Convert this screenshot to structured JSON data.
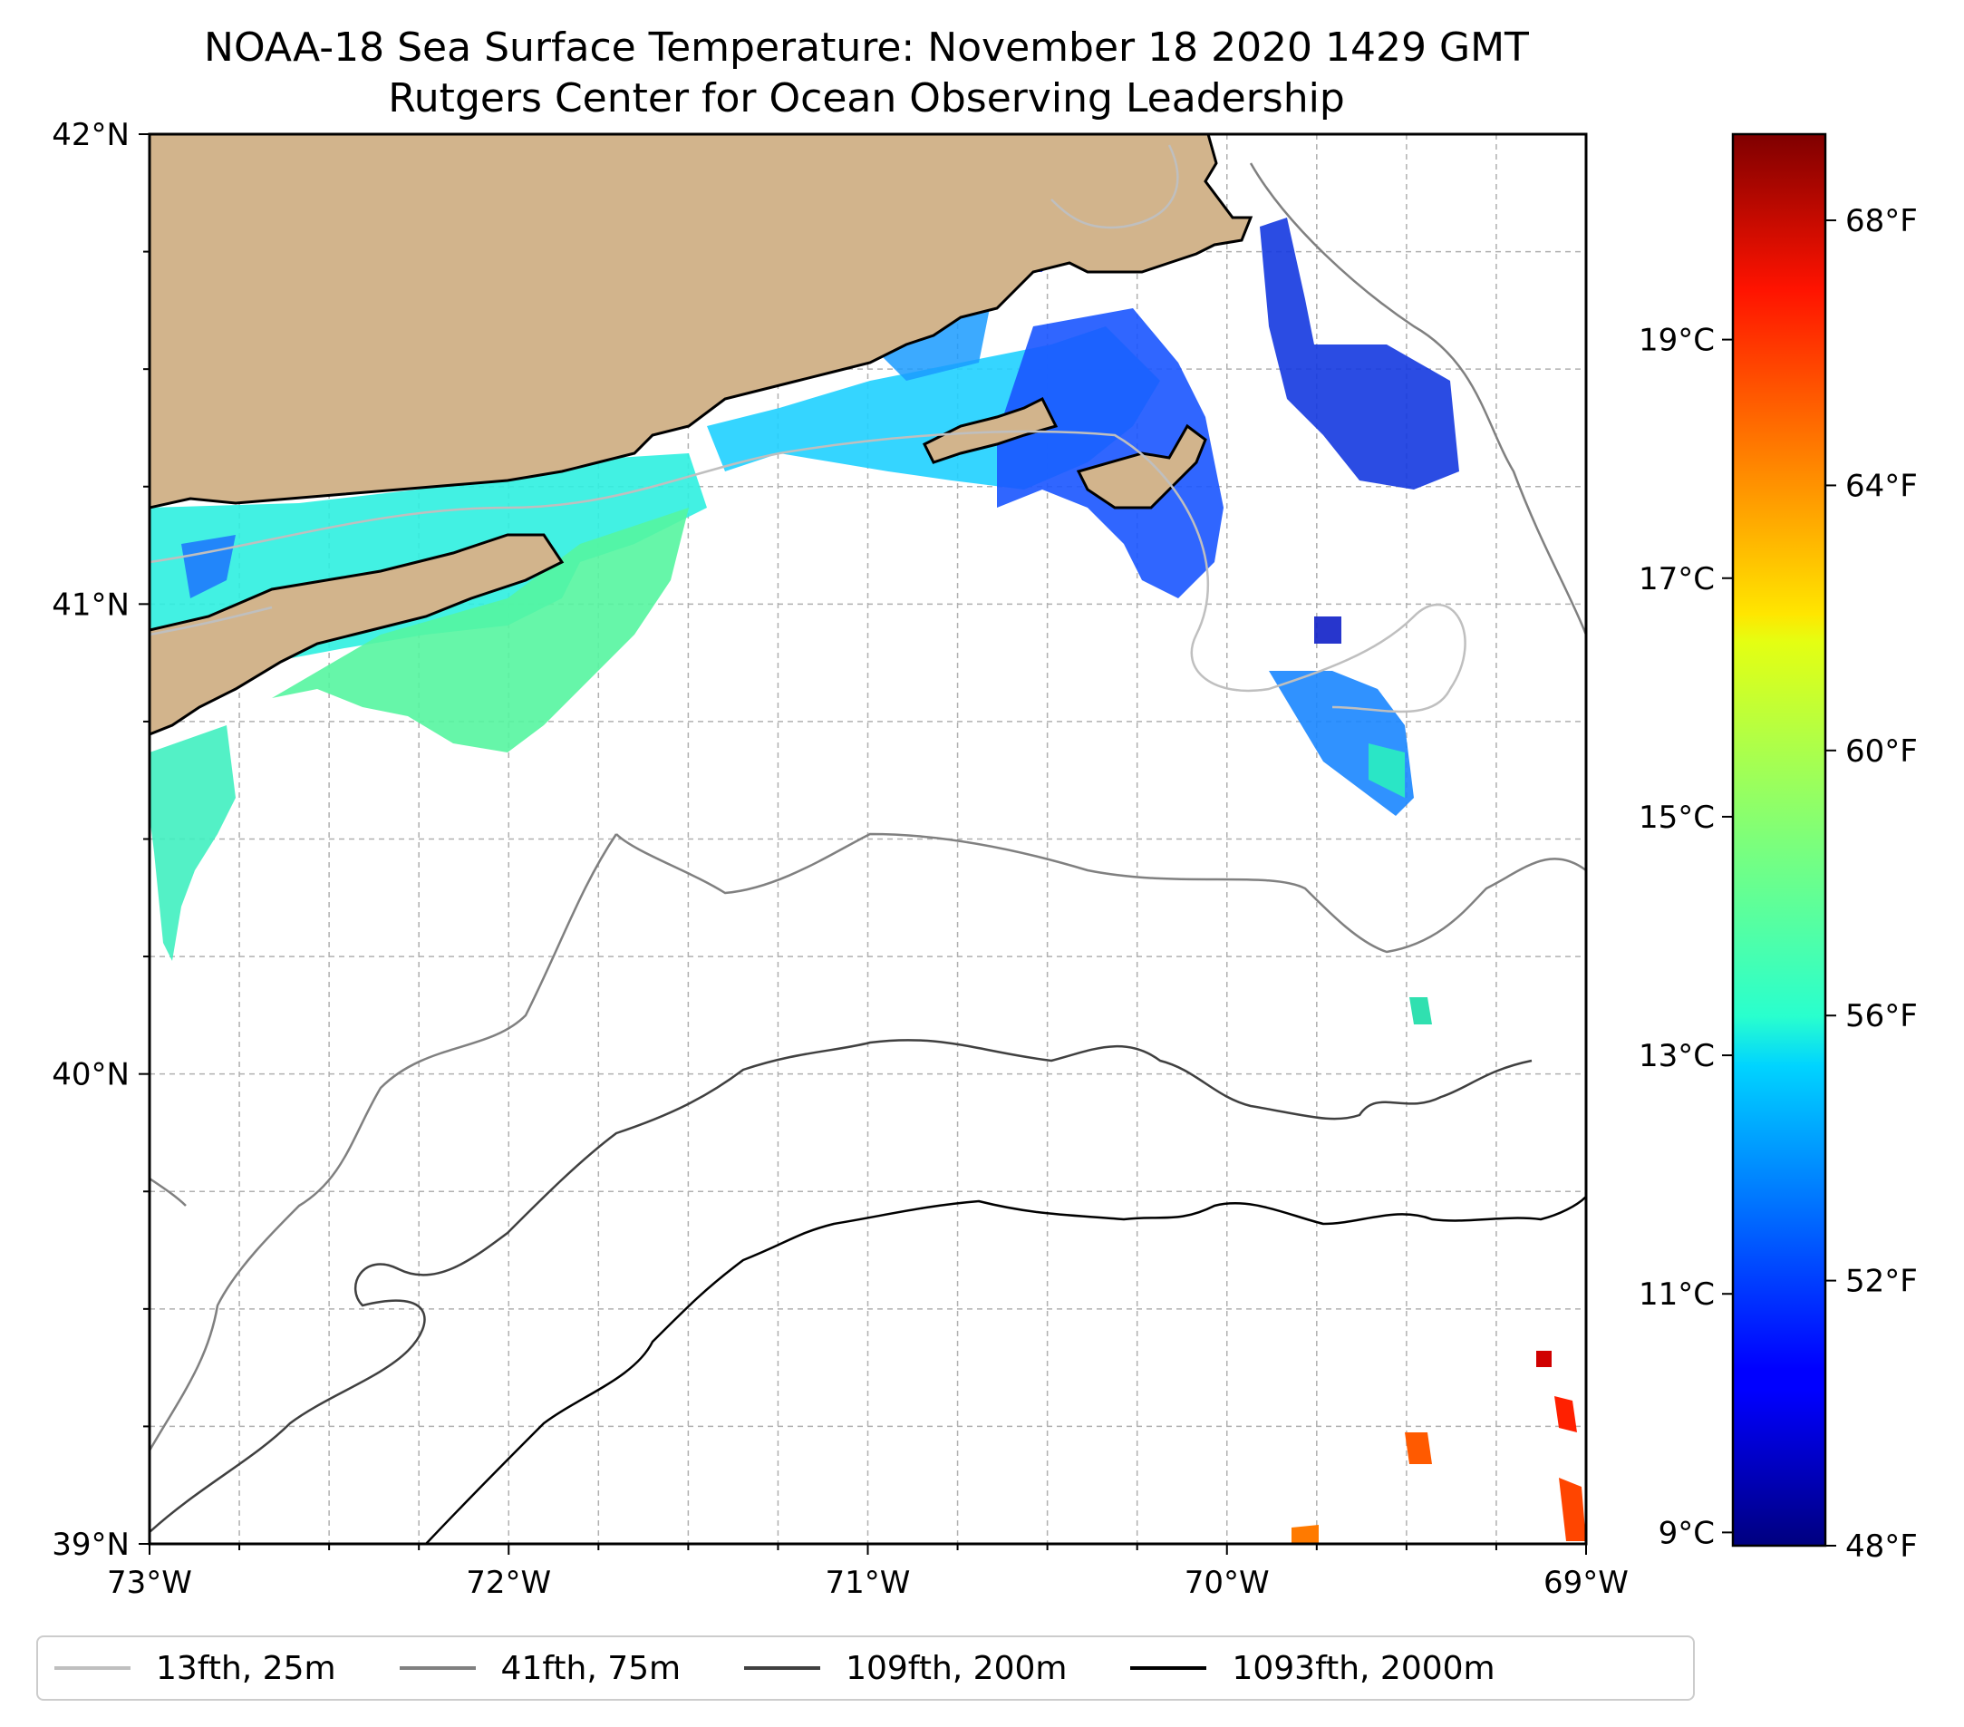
{
  "title": {
    "line1": "NOAA-18 Sea Surface Temperature: November 18 2020 1429 GMT",
    "line2": "Rutgers Center for Ocean Observing Leadership"
  },
  "map": {
    "lon_range": [
      -73,
      -69
    ],
    "lat_range": [
      39,
      42
    ],
    "lon_ticks": [
      {
        "value": -73,
        "label": "73°W"
      },
      {
        "value": -72,
        "label": "72°W"
      },
      {
        "value": -71,
        "label": "71°W"
      },
      {
        "value": -70,
        "label": "70°W"
      },
      {
        "value": -69,
        "label": "69°W"
      }
    ],
    "lat_ticks": [
      {
        "value": 42,
        "label": "42°N"
      },
      {
        "value": 41,
        "label": "41°N"
      },
      {
        "value": 40,
        "label": "40°N"
      },
      {
        "value": 39,
        "label": "39°N"
      }
    ],
    "land_color": "#d2b48c",
    "coast_color": "#000000"
  },
  "colorbar": {
    "celsius_ticks": [
      {
        "value": 19,
        "label": "19°C"
      },
      {
        "value": 17,
        "label": "17°C"
      },
      {
        "value": 15,
        "label": "15°C"
      },
      {
        "value": 13,
        "label": "13°C"
      },
      {
        "value": 11,
        "label": "11°C"
      },
      {
        "value": 9,
        "label": "9°C"
      }
    ],
    "fahrenheit_ticks": [
      {
        "value": 68,
        "label": "68°F"
      },
      {
        "value": 64,
        "label": "64°F"
      },
      {
        "value": 60,
        "label": "60°F"
      },
      {
        "value": 56,
        "label": "56°F"
      },
      {
        "value": 52,
        "label": "52°F"
      },
      {
        "value": 48,
        "label": "48°F"
      }
    ],
    "range_f": [
      48,
      69.3
    ],
    "colormap": "jet"
  },
  "legend": {
    "items": [
      {
        "label": "13fth, 25m",
        "color": "#bfbfbf"
      },
      {
        "label": "41fth, 75m",
        "color": "#808080"
      },
      {
        "label": "109fth, 200m",
        "color": "#404040"
      },
      {
        "label": "1093fth, 2000m",
        "color": "#000000"
      }
    ]
  }
}
